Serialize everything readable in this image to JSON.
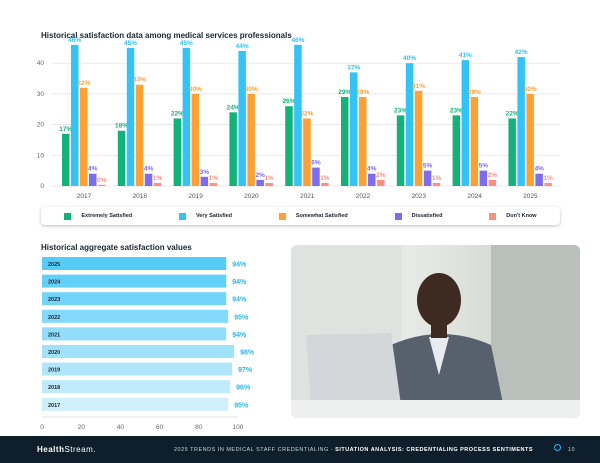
{
  "chart_data": [
    {
      "type": "bar",
      "title": "Historical satisfaction data among medical services professionals",
      "categories": [
        "2017",
        "2018",
        "2019",
        "2020",
        "2021",
        "2022",
        "2023",
        "2024",
        "2025"
      ],
      "ylim": [
        0,
        45
      ],
      "yticks": [
        0,
        10,
        20,
        30,
        40
      ],
      "grid": true,
      "legend": "bottom",
      "series": [
        {
          "name": "Extremely Satisfied",
          "color": "#13b27a",
          "values": [
            17,
            18,
            22,
            24,
            26,
            29,
            23,
            23,
            22
          ]
        },
        {
          "name": "Very Satisfied",
          "color": "#35c2f5",
          "values": [
            46,
            45,
            45,
            44,
            46,
            37,
            40,
            41,
            42
          ]
        },
        {
          "name": "Somewhat Satisfied",
          "color": "#ffa034",
          "values": [
            32,
            33,
            30,
            30,
            22,
            29,
            31,
            29,
            30
          ]
        },
        {
          "name": "Dissatisfied",
          "color": "#7b6cf0",
          "values": [
            4,
            4,
            3,
            2,
            6,
            4,
            5,
            5,
            4
          ]
        },
        {
          "name": "Don't Know",
          "color": "#ff8f7e",
          "values": [
            0,
            1,
            1,
            1,
            1,
            2,
            1,
            2,
            1
          ]
        }
      ]
    },
    {
      "type": "bar",
      "orientation": "horizontal",
      "title": "Historical aggregate satisfaction values",
      "categories": [
        "2025",
        "2024",
        "2023",
        "2022",
        "2021",
        "2020",
        "2019",
        "2018",
        "2017"
      ],
      "values": [
        94,
        94,
        94,
        95,
        94,
        98,
        97,
        96,
        95
      ],
      "xlim": [
        0,
        100
      ],
      "xticks": [
        0,
        20,
        40,
        60,
        80,
        100
      ],
      "colors": [
        "#55cbf8",
        "#63d0f9",
        "#73d4f9",
        "#82d9fa",
        "#91ddfa",
        "#a1e2fb",
        "#b0e6fb",
        "#c0ebfc",
        "#cfeffd"
      ],
      "label_color": "#29b6f6"
    }
  ],
  "footer": {
    "logo_bold": "Health",
    "logo_rest": "Stream.",
    "text": "2025 TRENDS IN MEDICAL STAFF CREDENTIALING - ",
    "text_bold": "SITUATION ANALYSIS: CREDENTIALING PROCESS SENTIMENTS",
    "page": "10"
  }
}
